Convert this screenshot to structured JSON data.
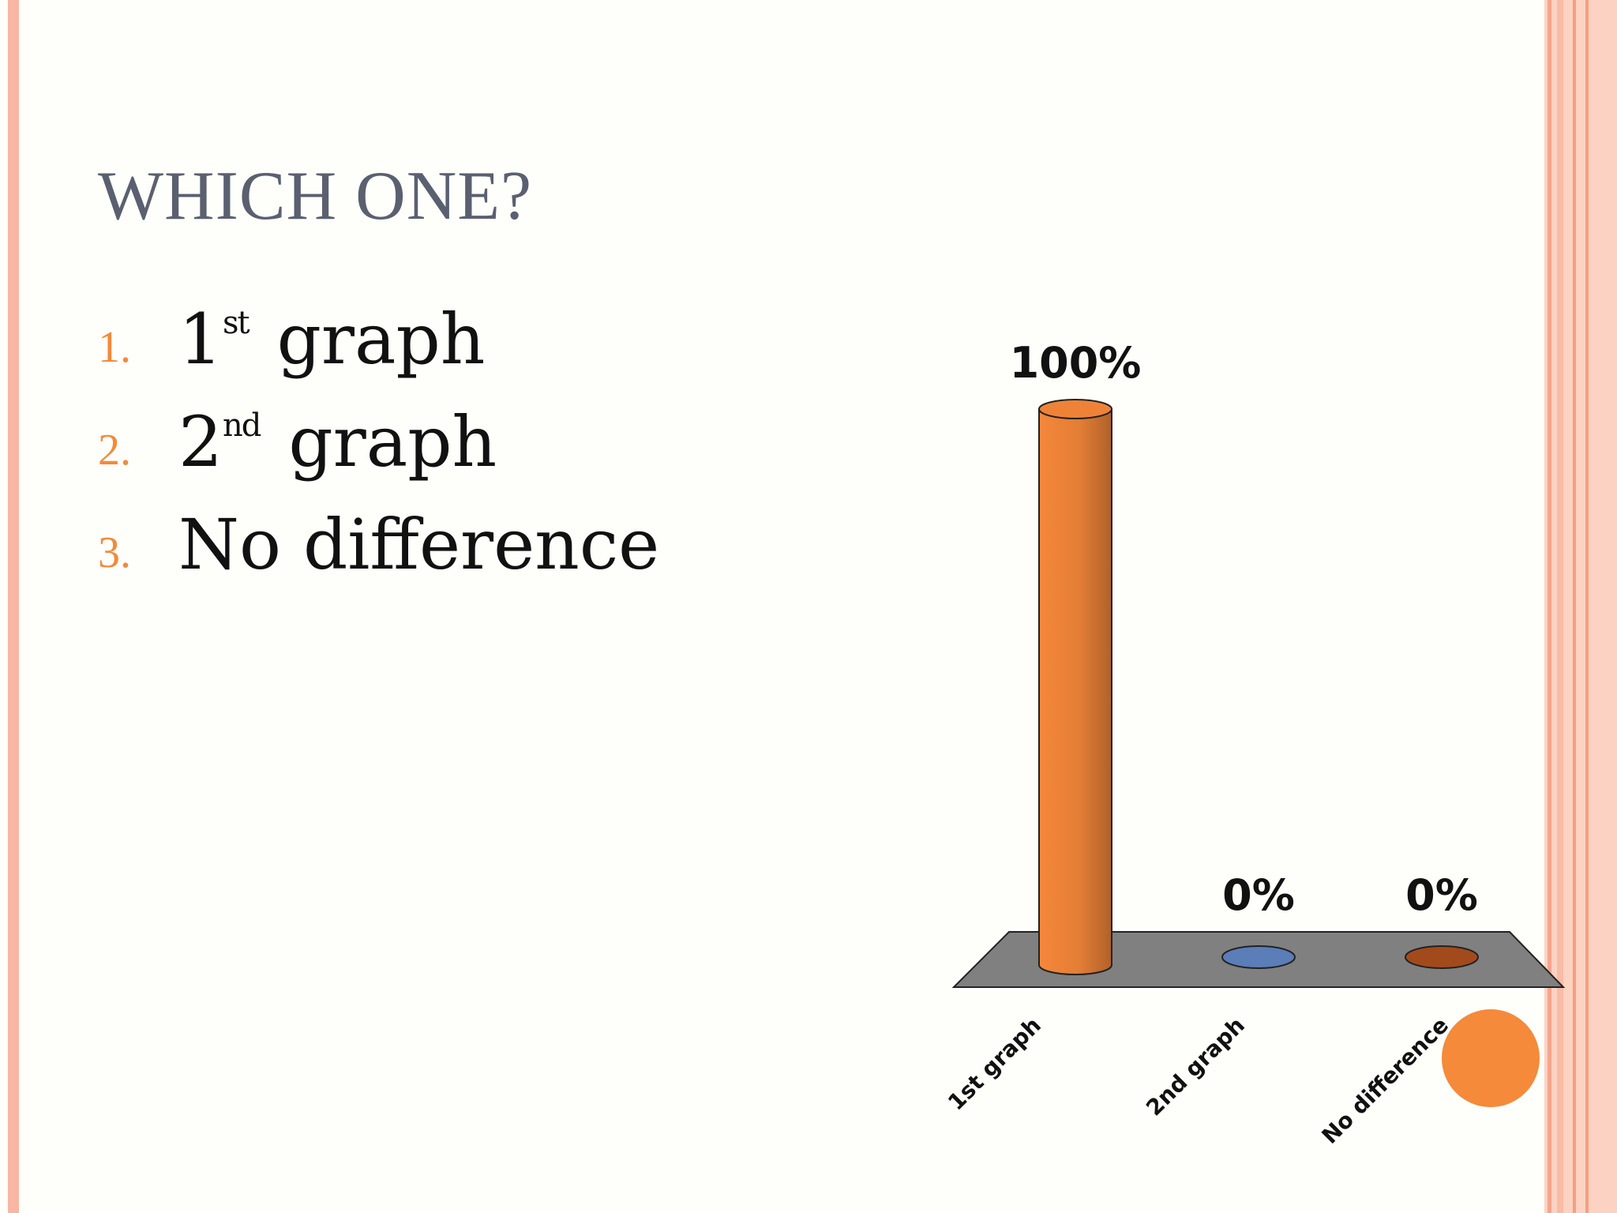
{
  "slide": {
    "title": "WHICH ONE?",
    "options": [
      {
        "number": "1.",
        "lead": "1",
        "sup": "st",
        "rest": "graph"
      },
      {
        "number": "2.",
        "lead": "2",
        "sup": "nd",
        "rest": "graph"
      },
      {
        "number": "3.",
        "lead": "No difference",
        "sup": "",
        "rest": ""
      }
    ]
  },
  "colors": {
    "background": "#fefefb",
    "accent": "#f48a3a",
    "border": "#fcd2c2",
    "title": "#5a6070",
    "floor": "#808080"
  },
  "chart_data": {
    "type": "bar",
    "categories": [
      "1st graph",
      "2nd graph",
      "No difference"
    ],
    "values": [
      100,
      0,
      0
    ],
    "data_labels": [
      "100%",
      "0%",
      "0%"
    ],
    "ylim": [
      0,
      100
    ],
    "colors": [
      "#f5873a",
      "#5b7db8",
      "#a34a1c"
    ],
    "grid": false,
    "legend": "none",
    "style": "3d-cylinder"
  }
}
